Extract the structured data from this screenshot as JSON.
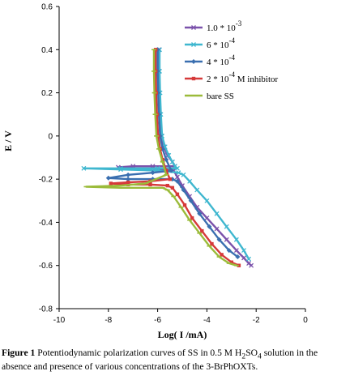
{
  "chart_data": {
    "type": "line",
    "title": "",
    "xlabel": "Log( I /mA)",
    "ylabel": "E / V",
    "xlim": [
      -10,
      0
    ],
    "ylim": [
      -0.8,
      0.6
    ],
    "xticks": [
      -10,
      -8,
      -6,
      -4,
      -2,
      0
    ],
    "yticks": [
      0.6,
      0.4,
      0.2,
      0,
      -0.2,
      -0.4,
      -0.6,
      -0.8
    ],
    "xtick_labels": [
      "-10",
      "-8",
      "-6",
      "-4",
      "-2",
      "0"
    ],
    "ytick_labels": [
      "0.6",
      "0.4",
      "0.2",
      "0",
      "-0.2",
      "-0.4",
      "-0.6",
      "-0.8"
    ],
    "grid": false,
    "legend_position": "top-right",
    "series": [
      {
        "name": "1.0 * 10-3",
        "legend_base": "1.0 * 10",
        "legend_exp": "-3",
        "legend_suffix": "",
        "color": "#7b52ab",
        "marker": "cross",
        "x": [
          -5.95,
          -5.95,
          -5.93,
          -5.9,
          -5.85,
          -5.75,
          -5.6,
          -5.4,
          -5.3,
          -6.2,
          -7.0,
          -7.6,
          -7.0,
          -6.2,
          -5.35,
          -5.2,
          -5.0,
          -4.7,
          -4.4,
          -4.0,
          -3.6,
          -3.2,
          -2.8,
          -2.5,
          -2.3,
          -2.2
        ],
        "y": [
          0.4,
          0.3,
          0.2,
          0.1,
          0.0,
          -0.05,
          -0.09,
          -0.12,
          -0.14,
          -0.14,
          -0.14,
          -0.145,
          -0.15,
          -0.15,
          -0.16,
          -0.19,
          -0.23,
          -0.28,
          -0.33,
          -0.38,
          -0.43,
          -0.48,
          -0.53,
          -0.565,
          -0.59,
          -0.6
        ]
      },
      {
        "name": "6 * 10-4",
        "legend_base": "6 * 10",
        "legend_exp": "-4",
        "legend_suffix": "",
        "color": "#3fb7cf",
        "marker": "cross",
        "x": [
          -5.92,
          -5.92,
          -5.9,
          -5.87,
          -5.82,
          -5.7,
          -5.55,
          -5.4,
          -5.3,
          -5.2,
          -6.0,
          -7.5,
          -9.0,
          -7.5,
          -6.0,
          -5.15,
          -4.95,
          -4.7,
          -4.4,
          -4.0,
          -3.6,
          -3.2,
          -2.8,
          -2.5,
          -2.3
        ],
        "y": [
          0.4,
          0.3,
          0.2,
          0.1,
          0.0,
          -0.05,
          -0.09,
          -0.12,
          -0.14,
          -0.15,
          -0.15,
          -0.15,
          -0.15,
          -0.155,
          -0.16,
          -0.17,
          -0.18,
          -0.21,
          -0.25,
          -0.3,
          -0.36,
          -0.42,
          -0.48,
          -0.53,
          -0.57
        ]
      },
      {
        "name": "4 * 10-4",
        "legend_base": "4 * 10",
        "legend_exp": "-4",
        "legend_suffix": "",
        "color": "#3a6fb0",
        "marker": "diamond",
        "x": [
          -6.0,
          -6.0,
          -5.98,
          -5.95,
          -5.9,
          -5.8,
          -5.65,
          -5.45,
          -6.2,
          -7.2,
          -8.0,
          -7.2,
          -6.2,
          -5.4,
          -5.2,
          -4.95,
          -4.65,
          -4.3,
          -3.9,
          -3.5,
          -3.1,
          -2.75
        ],
        "y": [
          0.4,
          0.3,
          0.2,
          0.1,
          0.0,
          -0.06,
          -0.11,
          -0.16,
          -0.17,
          -0.18,
          -0.195,
          -0.2,
          -0.2,
          -0.2,
          -0.21,
          -0.25,
          -0.3,
          -0.36,
          -0.42,
          -0.48,
          -0.53,
          -0.56
        ]
      },
      {
        "name": "2 * 10-4 M inhibitor",
        "legend_base": "2 * 10",
        "legend_exp": "-4",
        "legend_suffix": "M  inhibitor",
        "color": "#d63a3a",
        "marker": "square",
        "x": [
          -6.08,
          -6.08,
          -6.06,
          -6.03,
          -5.98,
          -5.9,
          -5.8,
          -5.65,
          -5.5,
          -6.3,
          -7.2,
          -7.9,
          -7.2,
          -6.3,
          -5.6,
          -5.4,
          -5.2,
          -4.9,
          -4.6,
          -4.2,
          -3.8,
          -3.4,
          -3.0,
          -2.7
        ],
        "y": [
          0.4,
          0.3,
          0.2,
          0.1,
          0.0,
          -0.06,
          -0.11,
          -0.16,
          -0.2,
          -0.21,
          -0.215,
          -0.22,
          -0.225,
          -0.225,
          -0.23,
          -0.24,
          -0.27,
          -0.32,
          -0.38,
          -0.44,
          -0.5,
          -0.55,
          -0.585,
          -0.6
        ]
      },
      {
        "name": "bare SS",
        "legend_base": "bare SS",
        "legend_exp": "",
        "legend_suffix": "",
        "color": "#9bbb3a",
        "marker": "dash",
        "x": [
          -6.15,
          -6.15,
          -6.13,
          -6.1,
          -6.05,
          -5.95,
          -5.8,
          -5.65,
          -6.5,
          -7.5,
          -8.9,
          -7.5,
          -6.4,
          -5.8,
          -5.6,
          -5.35,
          -5.05,
          -4.7,
          -4.3,
          -3.9,
          -3.5,
          -3.1,
          -2.8
        ],
        "y": [
          0.4,
          0.3,
          0.2,
          0.1,
          0.0,
          -0.06,
          -0.12,
          -0.18,
          -0.22,
          -0.23,
          -0.235,
          -0.24,
          -0.24,
          -0.24,
          -0.25,
          -0.28,
          -0.33,
          -0.39,
          -0.45,
          -0.51,
          -0.56,
          -0.59,
          -0.6
        ]
      }
    ]
  },
  "caption": {
    "label": "Figure 1",
    "text_part1": " Potentiodynamic polarization curves of SS in 0.5 M H",
    "sub": "2",
    "text_part2": "SO",
    "sub2": "4",
    "text_part3": " solution in the absence and presence of various concentrations of the 3-BrPhOXTs."
  }
}
